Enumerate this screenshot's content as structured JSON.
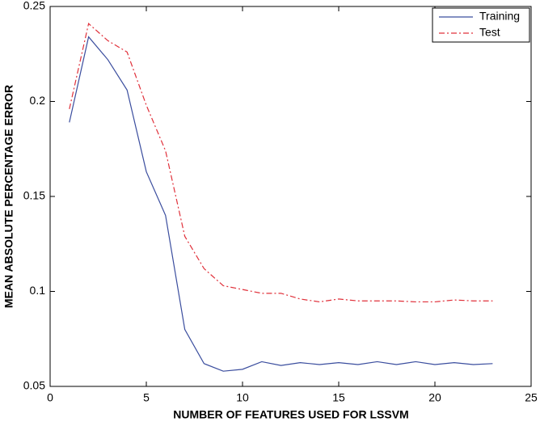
{
  "chart_data": {
    "type": "line",
    "x_label": "NUMBER OF FEATURES USED FOR LSSVM",
    "y_label": "MEAN ABSOLUTE PERCENTAGE ERROR",
    "x": [
      1,
      2,
      3,
      4,
      5,
      6,
      7,
      8,
      9,
      10,
      11,
      12,
      13,
      14,
      15,
      16,
      17,
      18,
      19,
      20,
      21,
      22,
      23
    ],
    "series": [
      {
        "name": "Training",
        "color": "#3a4d9e",
        "linestyle": "solid",
        "values": [
          0.189,
          0.234,
          0.222,
          0.206,
          0.163,
          0.14,
          0.08,
          0.062,
          0.058,
          0.059,
          0.063,
          0.061,
          0.0625,
          0.0615,
          0.0625,
          0.0615,
          0.063,
          0.0615,
          0.063,
          0.0615,
          0.0625,
          0.0615,
          0.062
        ]
      },
      {
        "name": "Test",
        "color": "#e0303a",
        "linestyle": "dashdot",
        "values": [
          0.196,
          0.241,
          0.232,
          0.226,
          0.198,
          0.174,
          0.129,
          0.112,
          0.103,
          0.101,
          0.099,
          0.099,
          0.096,
          0.0945,
          0.096,
          0.095,
          0.095,
          0.095,
          0.0945,
          0.0945,
          0.0955,
          0.095,
          0.095
        ]
      }
    ],
    "xlim": [
      0,
      25
    ],
    "xticks": [
      0,
      5,
      10,
      15,
      20,
      25
    ],
    "ylim": [
      0.05,
      0.25
    ],
    "yticks": [
      0.05,
      0.1,
      0.15,
      0.2,
      0.25
    ],
    "legend": "upper-right",
    "grid": false
  }
}
